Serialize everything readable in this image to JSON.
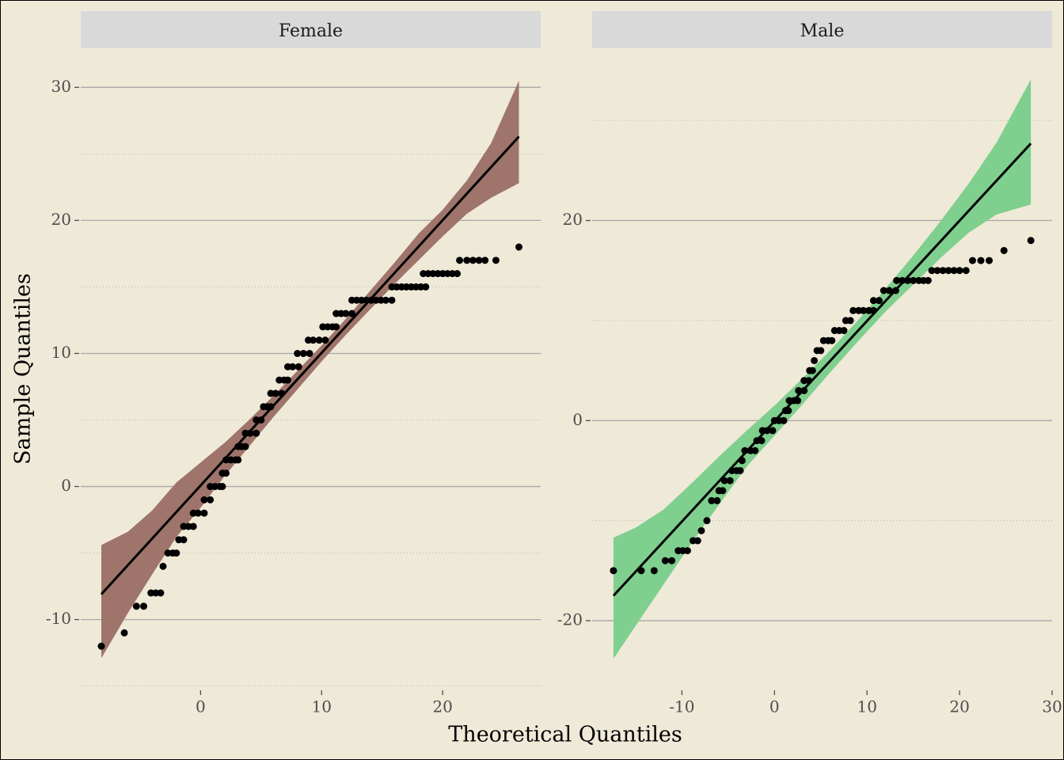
{
  "axis_labels": {
    "x": "Theoretical Quantiles",
    "y": "Sample Quantiles"
  },
  "chart_data": [
    {
      "type": "qq",
      "title": "Female",
      "band_color": "#9e746b",
      "point_color": "#000000",
      "line_color": "#000000",
      "xlim": [
        -9.9,
        28.1
      ],
      "ylim": [
        -15.2,
        32.4
      ],
      "xticks": [
        0,
        10,
        20
      ],
      "yticks": [
        -10,
        0,
        10,
        20,
        30
      ],
      "minor_yticks": [
        -15,
        -5,
        5,
        15,
        25
      ],
      "grid": true,
      "x": [
        -8.2,
        -6.3,
        -5.3,
        -4.7,
        -4.1,
        -3.7,
        -3.3,
        -3.1,
        -2.7,
        -2.3,
        -2.0,
        -1.8,
        -1.4,
        -1.4,
        -1.0,
        -0.6,
        -0.6,
        -0.2,
        0.3,
        0.3,
        0.8,
        0.8,
        1.2,
        1.6,
        1.8,
        1.8,
        2.1,
        2.1,
        2.5,
        2.9,
        3.1,
        3.1,
        3.4,
        3.7,
        3.7,
        4.1,
        4.6,
        4.6,
        5.0,
        5.2,
        5.5,
        5.8,
        5.8,
        6.2,
        6.7,
        6.5,
        6.9,
        7.2,
        7.2,
        7.6,
        8.1,
        8.0,
        8.5,
        9.0,
        8.9,
        9.3,
        9.8,
        10.3,
        10.1,
        10.5,
        10.9,
        11.2,
        11.2,
        11.6,
        12.0,
        12.5,
        12.5,
        12.9,
        13.3,
        13.7,
        14.1,
        14.5,
        14.9,
        15.3,
        15.8,
        15.8,
        16.2,
        16.6,
        17.0,
        17.4,
        17.8,
        18.2,
        18.6,
        18.4,
        18.8,
        19.2,
        19.6,
        20.0,
        20.4,
        20.8,
        21.2,
        21.4,
        22.0,
        22.5,
        23.0,
        23.5,
        24.4,
        26.3
      ],
      "y": [
        -12,
        -11,
        -9,
        -9,
        -8,
        -8,
        -8,
        -6,
        -5,
        -5,
        -5,
        -4,
        -4,
        -3,
        -3,
        -3,
        -2,
        -2,
        -2,
        -1,
        -1,
        0,
        0,
        0,
        0,
        1,
        1,
        2,
        2,
        2,
        2,
        3,
        3,
        3,
        4,
        4,
        4,
        5,
        5,
        6,
        6,
        6,
        7,
        7,
        7,
        8,
        8,
        8,
        9,
        9,
        9,
        10,
        10,
        10,
        11,
        11,
        11,
        11,
        12,
        12,
        12,
        12,
        13,
        13,
        13,
        13,
        14,
        14,
        14,
        14,
        14,
        14,
        14,
        14,
        14,
        15,
        15,
        15,
        15,
        15,
        15,
        15,
        15,
        16,
        16,
        16,
        16,
        16,
        16,
        16,
        16,
        17,
        17,
        17,
        17,
        17,
        17,
        18
      ],
      "line": {
        "x": [
          -8.2,
          26.3
        ],
        "y": [
          -8.1,
          26.3
        ]
      },
      "band": {
        "x": [
          -8.2,
          -6,
          -4,
          -2,
          0,
          2,
          4,
          6,
          8,
          10,
          12,
          14,
          16,
          18,
          20,
          22,
          24,
          26.3
        ],
        "upper": [
          -4.4,
          -3.4,
          -1.8,
          0.3,
          1.8,
          3.3,
          5.0,
          6.8,
          8.7,
          10.6,
          12.6,
          14.7,
          16.8,
          19.0,
          20.8,
          23.0,
          25.8,
          30.5
        ],
        "lower": [
          -12.9,
          -9.5,
          -6.6,
          -3.8,
          -1.6,
          0.8,
          3.0,
          5.2,
          7.3,
          9.4,
          11.4,
          13.3,
          15.2,
          17.0,
          18.8,
          20.5,
          21.7,
          22.8
        ]
      }
    },
    {
      "type": "qq",
      "title": "Male",
      "band_color": "#7fcf8e",
      "point_color": "#000000",
      "line_color": "#000000",
      "xlim": [
        -19.7,
        30
      ],
      "ylim": [
        -26.8,
        36.5
      ],
      "xticks": [
        -10,
        0,
        10,
        20,
        30
      ],
      "yticks": [
        -20,
        0,
        20
      ],
      "minor_yticks": [
        -10,
        10,
        30
      ],
      "grid": true,
      "x": [
        -17.4,
        -14.4,
        -13.0,
        -11.8,
        -11.1,
        -10.4,
        -9.9,
        -9.4,
        -8.8,
        -8.3,
        -7.9,
        -7.3,
        -6.8,
        -6.2,
        -6.0,
        -5.6,
        -5.4,
        -4.8,
        -4.6,
        -4.1,
        -3.7,
        -3.5,
        -3.2,
        -2.6,
        -2.1,
        -1.9,
        -1.4,
        -1.3,
        -0.8,
        -0.2,
        0.0,
        0.5,
        1.0,
        1.2,
        1.5,
        1.6,
        2.1,
        2.5,
        2.6,
        3.2,
        3.2,
        3.7,
        3.8,
        4.1,
        4.3,
        4.6,
        5.0,
        5.3,
        5.8,
        6.2,
        6.5,
        7.0,
        7.5,
        7.7,
        8.2,
        8.5,
        9.1,
        9.6,
        10.2,
        10.7,
        10.7,
        11.3,
        11.8,
        12.4,
        13.1,
        13.2,
        13.8,
        14.4,
        15.0,
        15.6,
        16.1,
        16.6,
        17.0,
        17.6,
        18.2,
        18.8,
        19.4,
        20.0,
        20.7,
        21.4,
        22.3,
        23.2,
        24.8,
        27.7
      ],
      "y": [
        -15,
        -15,
        -15,
        -14,
        -14,
        -13,
        -13,
        -13,
        -12,
        -12,
        -11,
        -10,
        -8,
        -8,
        -7,
        -7,
        -6,
        -6,
        -5,
        -5,
        -5,
        -4,
        -3,
        -3,
        -3,
        -2,
        -2,
        -1,
        -1,
        -1,
        0,
        0,
        0,
        1,
        1,
        2,
        2,
        2,
        3,
        3,
        4,
        4,
        5,
        5,
        6,
        7,
        7,
        8,
        8,
        8,
        9,
        9,
        9,
        10,
        10,
        11,
        11,
        11,
        11,
        11,
        12,
        12,
        13,
        13,
        13,
        14,
        14,
        14,
        14,
        14,
        14,
        14,
        15,
        15,
        15,
        15,
        15,
        15,
        15,
        16,
        16,
        16,
        17,
        18
      ],
      "line": {
        "x": [
          -17.4,
          27.7
        ],
        "y": [
          -17.5,
          27.7
        ]
      },
      "band": {
        "x": [
          -17.4,
          -15,
          -12,
          -9,
          -6,
          -3,
          0,
          3,
          6,
          9,
          12,
          15,
          18,
          21,
          24,
          27.7
        ],
        "upper": [
          -11.7,
          -10.7,
          -8.9,
          -6.3,
          -3.6,
          -1.0,
          1.5,
          4.2,
          7.0,
          10.0,
          13.2,
          16.5,
          20.0,
          23.7,
          27.8,
          34.1
        ],
        "lower": [
          -23.8,
          -20.5,
          -16.4,
          -12.3,
          -8.4,
          -4.6,
          -1.5,
          1.6,
          4.8,
          7.9,
          10.9,
          13.6,
          16.3,
          18.8,
          20.6,
          21.6
        ]
      }
    }
  ]
}
